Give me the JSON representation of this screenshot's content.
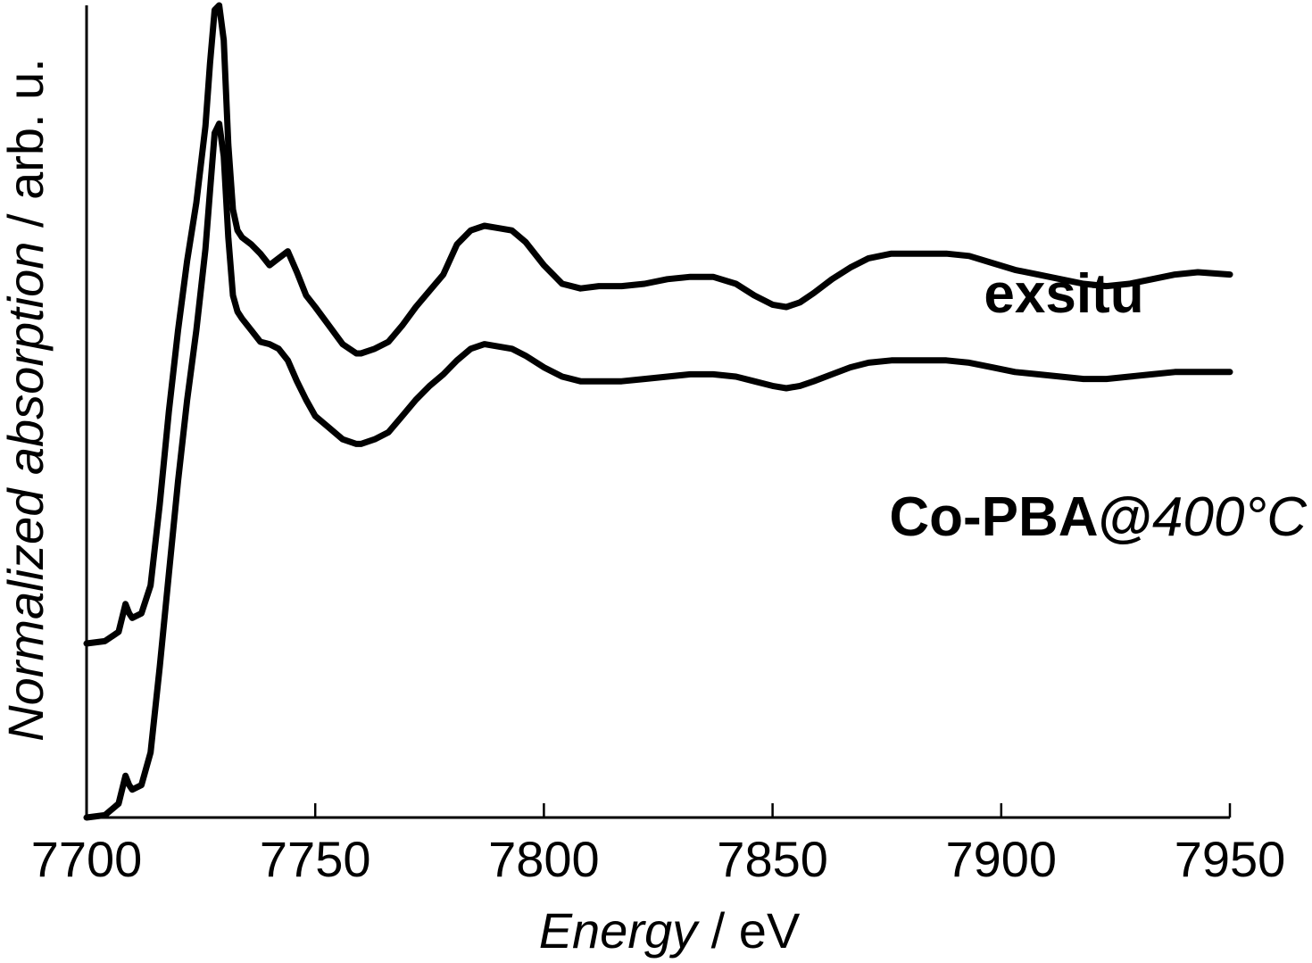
{
  "chart_data": {
    "type": "line",
    "xlabel_italic": "Energy",
    "xlabel_rest": " / eV",
    "ylabel_italic": "Normalized absorption",
    "ylabel_rest": " / arb. u.",
    "xlim": [
      7700,
      7950
    ],
    "ylim": [
      0,
      3.5
    ],
    "xticks": [
      7700,
      7750,
      7800,
      7850,
      7900,
      7950
    ],
    "yticks_shown": false,
    "grid": false,
    "series": [
      {
        "name": "exsitu",
        "label_parts": [
          {
            "text": "exsitu",
            "italic": false
          }
        ],
        "x": [
          7700,
          7704,
          7707,
          7708.5,
          7709.3,
          7710,
          7712,
          7714,
          7716,
          7718,
          7720,
          7722,
          7724,
          7726,
          7727,
          7728,
          7729,
          7730,
          7731,
          7732,
          7733,
          7734,
          7736,
          7738,
          7740,
          7742,
          7744,
          7746,
          7748,
          7750,
          7753,
          7756,
          7759,
          7760,
          7763,
          7766,
          7769,
          7772,
          7775,
          7778,
          7781,
          7784,
          7787,
          7790,
          7793,
          7796,
          7800,
          7804,
          7808,
          7812,
          7817,
          7822,
          7827,
          7832,
          7837,
          7842,
          7846,
          7850,
          7853,
          7856,
          7859,
          7863,
          7867,
          7871,
          7876,
          7882,
          7888,
          7893,
          7898,
          7903,
          7908,
          7913,
          7918,
          7923,
          7928,
          7933,
          7938,
          7943,
          7950
        ],
        "values": [
          0.75,
          0.76,
          0.8,
          0.92,
          0.88,
          0.86,
          0.88,
          1.0,
          1.35,
          1.75,
          2.1,
          2.4,
          2.65,
          2.98,
          3.25,
          3.48,
          3.5,
          3.35,
          2.9,
          2.62,
          2.53,
          2.5,
          2.47,
          2.43,
          2.38,
          2.41,
          2.44,
          2.35,
          2.25,
          2.2,
          2.12,
          2.04,
          2.0,
          2.0,
          2.02,
          2.05,
          2.12,
          2.2,
          2.27,
          2.34,
          2.47,
          2.53,
          2.55,
          2.54,
          2.53,
          2.48,
          2.38,
          2.3,
          2.28,
          2.29,
          2.29,
          2.3,
          2.32,
          2.33,
          2.33,
          2.3,
          2.25,
          2.21,
          2.2,
          2.22,
          2.26,
          2.32,
          2.37,
          2.41,
          2.43,
          2.43,
          2.43,
          2.42,
          2.39,
          2.36,
          2.34,
          2.32,
          2.3,
          2.29,
          2.3,
          2.32,
          2.34,
          2.35,
          2.34
        ]
      },
      {
        "name": "Co-PBA@400°C",
        "label_parts": [
          {
            "text": "Co-PBA@",
            "italic": false
          },
          {
            "text": "400°C",
            "italic": true
          }
        ],
        "x": [
          7700,
          7704,
          7707,
          7708.5,
          7709.3,
          7710,
          7712,
          7714,
          7716,
          7718,
          7720,
          7722,
          7724,
          7726,
          7727,
          7728,
          7729,
          7730,
          7731,
          7732,
          7733,
          7734,
          7736,
          7738,
          7740,
          7742,
          7744,
          7746,
          7748,
          7750,
          7753,
          7756,
          7759,
          7760,
          7763,
          7766,
          7769,
          7772,
          7775,
          7778,
          7781,
          7784,
          7787,
          7790,
          7793,
          7796,
          7800,
          7804,
          7808,
          7812,
          7817,
          7822,
          7827,
          7832,
          7837,
          7842,
          7846,
          7850,
          7853,
          7856,
          7859,
          7863,
          7867,
          7871,
          7876,
          7882,
          7888,
          7893,
          7898,
          7903,
          7908,
          7913,
          7918,
          7923,
          7928,
          7933,
          7938,
          7943,
          7950
        ],
        "values": [
          0.0,
          0.01,
          0.06,
          0.18,
          0.14,
          0.12,
          0.14,
          0.28,
          0.65,
          1.05,
          1.45,
          1.8,
          2.1,
          2.45,
          2.7,
          2.95,
          2.99,
          2.85,
          2.5,
          2.25,
          2.18,
          2.15,
          2.1,
          2.05,
          2.04,
          2.02,
          1.97,
          1.88,
          1.8,
          1.73,
          1.68,
          1.63,
          1.61,
          1.61,
          1.63,
          1.66,
          1.73,
          1.8,
          1.86,
          1.91,
          1.97,
          2.02,
          2.04,
          2.03,
          2.02,
          1.99,
          1.94,
          1.9,
          1.88,
          1.88,
          1.88,
          1.89,
          1.9,
          1.91,
          1.91,
          1.9,
          1.88,
          1.86,
          1.85,
          1.86,
          1.88,
          1.91,
          1.94,
          1.96,
          1.97,
          1.97,
          1.97,
          1.96,
          1.94,
          1.92,
          1.91,
          1.9,
          1.89,
          1.89,
          1.9,
          1.91,
          1.92,
          1.92,
          1.92
        ]
      }
    ]
  }
}
